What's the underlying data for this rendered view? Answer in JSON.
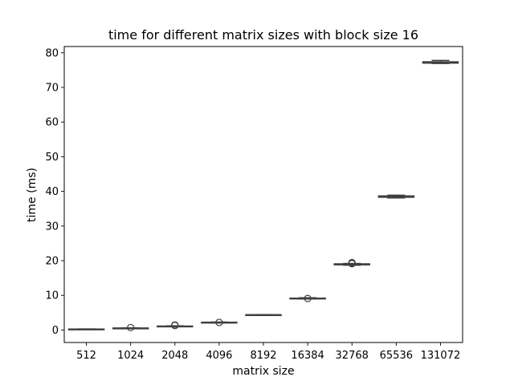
{
  "chart_data": {
    "type": "box",
    "title": "time for different matrix sizes with block size 16",
    "xlabel": "matrix size",
    "ylabel": "time (ms)",
    "ylim": [
      -3.6,
      81.8
    ],
    "yticks": [
      0,
      10,
      20,
      30,
      40,
      50,
      60,
      70,
      80
    ],
    "grid": false,
    "colors": {
      "box_fill": "#ffffff",
      "box_edge": "#3f3f3f",
      "frame": "#000000"
    },
    "categories": [
      "512",
      "1024",
      "2048",
      "4096",
      "8192",
      "16384",
      "32768",
      "65536",
      "131072"
    ],
    "boxes": [
      {
        "category": "512",
        "q1": 0.25,
        "median": 0.27,
        "q3": 0.29,
        "whisker_low": 0.22,
        "whisker_high": 0.32,
        "outliers": []
      },
      {
        "category": "1024",
        "q1": 0.52,
        "median": 0.55,
        "q3": 0.58,
        "whisker_low": 0.48,
        "whisker_high": 0.62,
        "outliers": [
          0.7
        ]
      },
      {
        "category": "2048",
        "q1": 1.05,
        "median": 1.1,
        "q3": 1.15,
        "whisker_low": 1.0,
        "whisker_high": 1.2,
        "outliers": [
          1.3,
          1.45
        ]
      },
      {
        "category": "4096",
        "q1": 2.15,
        "median": 2.2,
        "q3": 2.25,
        "whisker_low": 2.1,
        "whisker_high": 2.3,
        "outliers": [
          2.2
        ]
      },
      {
        "category": "8192",
        "q1": 4.38,
        "median": 4.4,
        "q3": 4.42,
        "whisker_low": 4.35,
        "whisker_high": 4.45,
        "outliers": []
      },
      {
        "category": "16384",
        "q1": 9.0,
        "median": 9.1,
        "q3": 9.2,
        "whisker_low": 8.95,
        "whisker_high": 9.3,
        "outliers": [
          9.1
        ]
      },
      {
        "category": "32768",
        "q1": 18.8,
        "median": 18.95,
        "q3": 19.1,
        "whisker_low": 18.7,
        "whisker_high": 19.2,
        "outliers": [
          19.3,
          19.45,
          19.15
        ]
      },
      {
        "category": "65536",
        "q1": 38.3,
        "median": 38.5,
        "q3": 38.7,
        "whisker_low": 38.1,
        "whisker_high": 38.9,
        "outliers": []
      },
      {
        "category": "131072",
        "q1": 77.0,
        "median": 77.2,
        "q3": 77.4,
        "whisker_low": 76.9,
        "whisker_high": 77.8,
        "outliers": []
      }
    ]
  }
}
